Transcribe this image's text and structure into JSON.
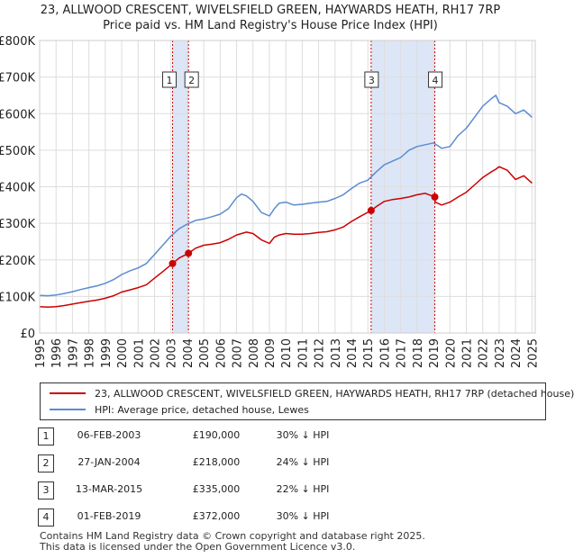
{
  "title_line1": "23, ALLWOOD CRESCENT, WIVELSFIELD GREEN, HAYWARDS HEATH, RH17 7RP",
  "title_line2": "Price paid vs. HM Land Registry's House Price Index (HPI)",
  "colors": {
    "property": "#cc0000",
    "hpi": "#5b8bd0",
    "shade": "#dde6f7",
    "grid": "#dddddd",
    "marker_line": "#cc0000"
  },
  "legend": {
    "property_label": "23, ALLWOOD CRESCENT, WIVELSFIELD GREEN, HAYWARDS HEATH, RH17 7RP (detached house)",
    "hpi_label": "HPI: Average price, detached house, Lewes"
  },
  "sales": [
    {
      "num": "1",
      "date": "06-FEB-2003",
      "price": "£190,000",
      "hpi": "30% ↓ HPI"
    },
    {
      "num": "2",
      "date": "27-JAN-2004",
      "price": "£218,000",
      "hpi": "24% ↓ HPI"
    },
    {
      "num": "3",
      "date": "13-MAR-2015",
      "price": "£335,000",
      "hpi": "22% ↓ HPI"
    },
    {
      "num": "4",
      "date": "01-FEB-2019",
      "price": "£372,000",
      "hpi": "30% ↓ HPI"
    }
  ],
  "footer_line1": "Contains HM Land Registry data © Crown copyright and database right 2025.",
  "footer_line2": "This data is licensed under the Open Government Licence v3.0.",
  "chart_data": {
    "type": "line",
    "title": "23, ALLWOOD CRESCENT, WIVELSFIELD GREEN, HAYWARDS HEATH, RH17 7RP",
    "subtitle": "Price paid vs. HM Land Registry's House Price Index (HPI)",
    "xlabel": "",
    "ylabel": "",
    "xlim": [
      1995,
      2025.2
    ],
    "ylim": [
      0,
      800000
    ],
    "grid": true,
    "x_ticks": [
      "1995",
      "1996",
      "1997",
      "1998",
      "1999",
      "2000",
      "2001",
      "2002",
      "2003",
      "2004",
      "2005",
      "2006",
      "2007",
      "2008",
      "2009",
      "2010",
      "2011",
      "2012",
      "2013",
      "2014",
      "2015",
      "2016",
      "2017",
      "2018",
      "2019",
      "2020",
      "2021",
      "2022",
      "2023",
      "2024",
      "2025"
    ],
    "y_ticks": [
      {
        "value": 0,
        "label": "£0"
      },
      {
        "value": 100000,
        "label": "£100K"
      },
      {
        "value": 200000,
        "label": "£200K"
      },
      {
        "value": 300000,
        "label": "£300K"
      },
      {
        "value": 400000,
        "label": "£400K"
      },
      {
        "value": 500000,
        "label": "£500K"
      },
      {
        "value": 600000,
        "label": "£600K"
      },
      {
        "value": 700000,
        "label": "£700K"
      },
      {
        "value": 800000,
        "label": "£800K"
      }
    ],
    "shaded_periods": [
      [
        2003.1,
        2004.07
      ],
      [
        2015.2,
        2019.08
      ]
    ],
    "series": [
      {
        "name": "HPI: Average price, detached house, Lewes",
        "x": [
          1995,
          1995.5,
          1996,
          1996.5,
          1997,
          1997.5,
          1998,
          1998.5,
          1999,
          1999.5,
          2000,
          2000.5,
          2001,
          2001.5,
          2002,
          2002.5,
          2003,
          2003.5,
          2004,
          2004.5,
          2005,
          2005.5,
          2006,
          2006.5,
          2007,
          2007.3,
          2007.6,
          2008,
          2008.5,
          2009,
          2009.3,
          2009.6,
          2010,
          2010.5,
          2011,
          2011.5,
          2012,
          2012.5,
          2013,
          2013.5,
          2014,
          2014.5,
          2015,
          2015.5,
          2016,
          2016.5,
          2017,
          2017.5,
          2018,
          2018.5,
          2019,
          2019.5,
          2020,
          2020.5,
          2021,
          2021.5,
          2022,
          2022.5,
          2022.8,
          2023,
          2023.5,
          2024,
          2024.5,
          2025
        ],
        "values": [
          103000,
          102000,
          104000,
          108000,
          113000,
          119000,
          124000,
          129000,
          136000,
          146000,
          160000,
          170000,
          178000,
          190000,
          215000,
          240000,
          265000,
          285000,
          298000,
          308000,
          312000,
          318000,
          325000,
          340000,
          370000,
          380000,
          375000,
          360000,
          330000,
          320000,
          340000,
          355000,
          358000,
          350000,
          352000,
          355000,
          358000,
          360000,
          368000,
          378000,
          395000,
          410000,
          418000,
          440000,
          460000,
          470000,
          480000,
          500000,
          510000,
          515000,
          520000,
          505000,
          510000,
          540000,
          560000,
          590000,
          620000,
          640000,
          650000,
          630000,
          620000,
          600000,
          610000,
          590000
        ]
      },
      {
        "name": "23, ALLWOOD CRESCENT, WIVELSFIELD GREEN, HAYWARDS HEATH, RH17 7RP (detached house)",
        "x": [
          1995,
          1995.5,
          1996,
          1996.5,
          1997,
          1997.5,
          1998,
          1998.5,
          1999,
          1999.5,
          2000,
          2000.5,
          2001,
          2001.5,
          2002,
          2002.5,
          2003.1,
          2003.5,
          2004.07,
          2004.5,
          2005,
          2005.5,
          2006,
          2006.5,
          2007,
          2007.3,
          2007.6,
          2008,
          2008.5,
          2009,
          2009.3,
          2009.6,
          2010,
          2010.5,
          2011,
          2011.5,
          2012,
          2012.5,
          2013,
          2013.5,
          2014,
          2014.5,
          2015.2,
          2015.5,
          2016,
          2016.5,
          2017,
          2017.5,
          2018,
          2018.5,
          2019.08,
          2019.1,
          2019.5,
          2020,
          2020.5,
          2021,
          2021.5,
          2022,
          2022.5,
          2022.8,
          2023,
          2023.5,
          2024,
          2024.5,
          2025
        ],
        "values": [
          72000,
          71000,
          72000,
          75000,
          79000,
          83000,
          87000,
          90000,
          95000,
          102000,
          112000,
          118000,
          124000,
          132000,
          150000,
          168000,
          190000,
          205000,
          218000,
          232000,
          240000,
          243000,
          247000,
          256000,
          268000,
          272000,
          276000,
          272000,
          255000,
          245000,
          262000,
          268000,
          272000,
          270000,
          270000,
          272000,
          275000,
          277000,
          282000,
          290000,
          305000,
          318000,
          335000,
          345000,
          360000,
          365000,
          368000,
          372000,
          378000,
          382000,
          372000,
          358000,
          350000,
          358000,
          372000,
          385000,
          405000,
          425000,
          440000,
          448000,
          455000,
          445000,
          420000,
          430000,
          410000
        ]
      }
    ],
    "sale_points": [
      {
        "label": "1",
        "x": 2003.1,
        "price": 190000
      },
      {
        "label": "2",
        "x": 2004.07,
        "price": 218000
      },
      {
        "label": "3",
        "x": 2015.2,
        "price": 335000
      },
      {
        "label": "4",
        "x": 2019.08,
        "price": 372000
      }
    ]
  }
}
